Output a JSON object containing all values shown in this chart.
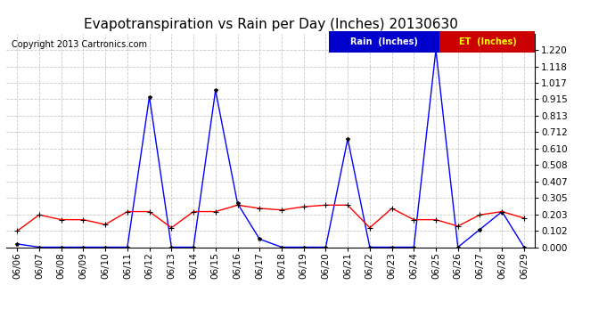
{
  "title": "Evapotranspiration vs Rain per Day (Inches) 20130630",
  "copyright": "Copyright 2013 Cartronics.com",
  "dates": [
    "06/06",
    "06/07",
    "06/08",
    "06/09",
    "06/10",
    "06/11",
    "06/12",
    "06/13",
    "06/14",
    "06/15",
    "06/16",
    "06/17",
    "06/18",
    "06/19",
    "06/20",
    "06/21",
    "06/22",
    "06/23",
    "06/24",
    "06/25",
    "06/26",
    "06/27",
    "06/28",
    "06/29"
  ],
  "rain": [
    0.02,
    0.0,
    0.0,
    0.0,
    0.0,
    0.0,
    0.93,
    0.0,
    0.0,
    0.97,
    0.27,
    0.05,
    0.0,
    0.0,
    0.0,
    0.67,
    0.0,
    0.0,
    0.0,
    1.22,
    0.0,
    0.11,
    0.22,
    0.0
  ],
  "et": [
    0.1,
    0.2,
    0.17,
    0.17,
    0.14,
    0.22,
    0.22,
    0.12,
    0.22,
    0.22,
    0.26,
    0.24,
    0.23,
    0.25,
    0.26,
    0.26,
    0.12,
    0.24,
    0.17,
    0.17,
    0.13,
    0.2,
    0.22,
    0.18
  ],
  "rain_color": "#0000ff",
  "et_color": "#ff0000",
  "marker_color": "#000000",
  "background_color": "#ffffff",
  "grid_color": "#c8c8c8",
  "ylim": [
    0.0,
    1.322
  ],
  "yticks": [
    0.0,
    0.102,
    0.203,
    0.305,
    0.407,
    0.508,
    0.61,
    0.712,
    0.813,
    0.915,
    1.017,
    1.118,
    1.22
  ],
  "legend_rain_bg": "#0000cc",
  "legend_et_bg": "#cc0000",
  "legend_rain_text": "Rain  (Inches)",
  "legend_et_text": "ET  (Inches)",
  "title_fontsize": 11,
  "copyright_fontsize": 7,
  "axis_fontsize": 7.5,
  "legend_fontsize": 7,
  "marker_size": 3,
  "line_width": 1.0
}
